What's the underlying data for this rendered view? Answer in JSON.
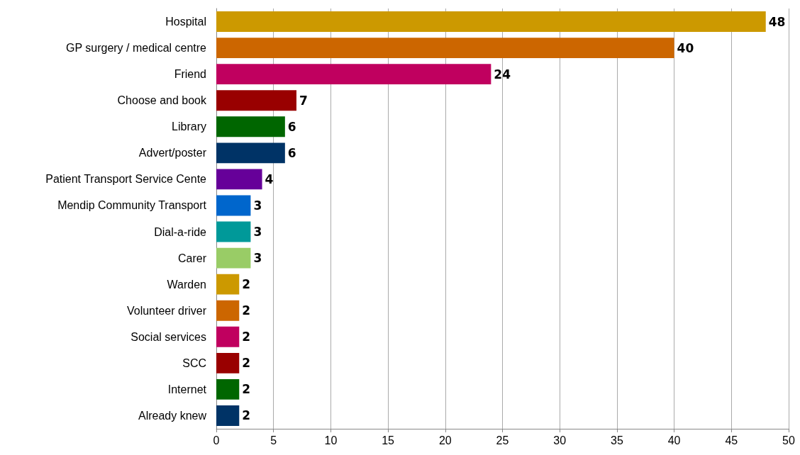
{
  "chart_data": {
    "type": "bar",
    "orientation": "horizontal",
    "categories": [
      "Hospital",
      "GP surgery / medical centre",
      "Friend",
      "Choose and book",
      "Library",
      "Advert/poster",
      "Patient Transport Service Cente",
      "Mendip Community Transport",
      "Dial-a-ride",
      "Carer",
      "Warden",
      "Volunteer driver",
      "Social services",
      "SCC",
      "Internet",
      "Already knew"
    ],
    "values": [
      48,
      40,
      24,
      7,
      6,
      6,
      4,
      3,
      3,
      3,
      2,
      2,
      2,
      2,
      2,
      2
    ],
    "colors": [
      "#cc9900",
      "#cc6600",
      "#c0005f",
      "#990000",
      "#006600",
      "#003366",
      "#660099",
      "#0066cc",
      "#009999",
      "#99cc66",
      "#cc9900",
      "#cc6600",
      "#c0005f",
      "#990000",
      "#006600",
      "#003366"
    ],
    "xlim": [
      0,
      50
    ],
    "xticks": [
      0,
      5,
      10,
      15,
      20,
      25,
      30,
      35,
      40,
      45,
      50
    ],
    "grid": "x",
    "data_labels": true
  }
}
